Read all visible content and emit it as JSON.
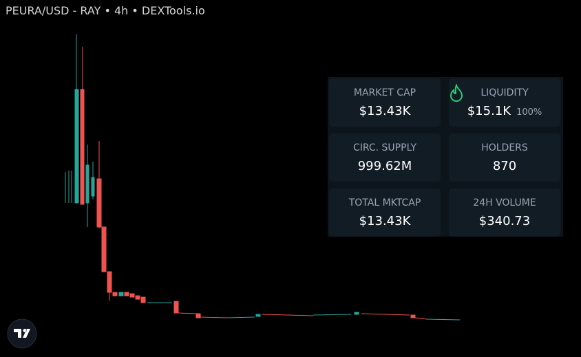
{
  "header": {
    "title": "PEURA/USD - RAY • 4h • DEXTools.io"
  },
  "stats": [
    {
      "label": "MARKET CAP",
      "value": "$13.43K"
    },
    {
      "label": "LIQUIDITY",
      "value": "$15.1K",
      "extra": "100%"
    },
    {
      "label": "CIRC. SUPPLY",
      "value": "999.62M"
    },
    {
      "label": "HOLDERS",
      "value": "870"
    },
    {
      "label": "TOTAL MKTCAP",
      "value": "$13.43K"
    },
    {
      "label": "24H VOLUME",
      "value": "$340.73"
    }
  ]
}
